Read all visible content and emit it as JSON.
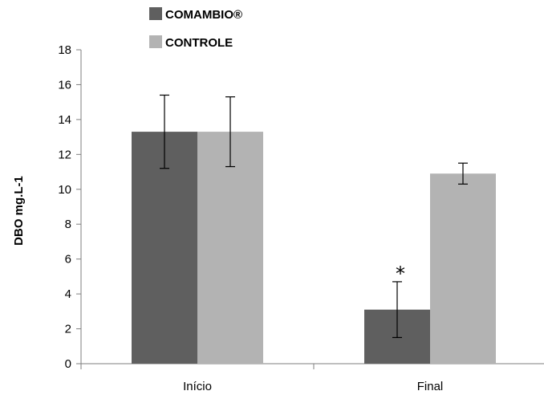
{
  "chart_data": {
    "type": "bar",
    "title": "",
    "xlabel": "",
    "ylabel": "DBO mg.L-1",
    "ylim": [
      0,
      18
    ],
    "yticks": [
      0,
      2,
      4,
      6,
      8,
      10,
      12,
      14,
      16,
      18
    ],
    "categories": [
      "Início",
      "Final"
    ],
    "legend_position": "top-left",
    "grid": false,
    "series": [
      {
        "name": "COMAMBIO®",
        "color": "#5f5f5f",
        "values": [
          13.3,
          3.1
        ],
        "error": [
          2.1,
          1.6
        ]
      },
      {
        "name": "CONTROLE",
        "color": "#b3b3b3",
        "values": [
          13.3,
          10.9
        ],
        "error": [
          2.0,
          0.6
        ]
      }
    ],
    "annotations": [
      {
        "text": "*",
        "category_index": 1,
        "series_index": 0
      }
    ]
  }
}
